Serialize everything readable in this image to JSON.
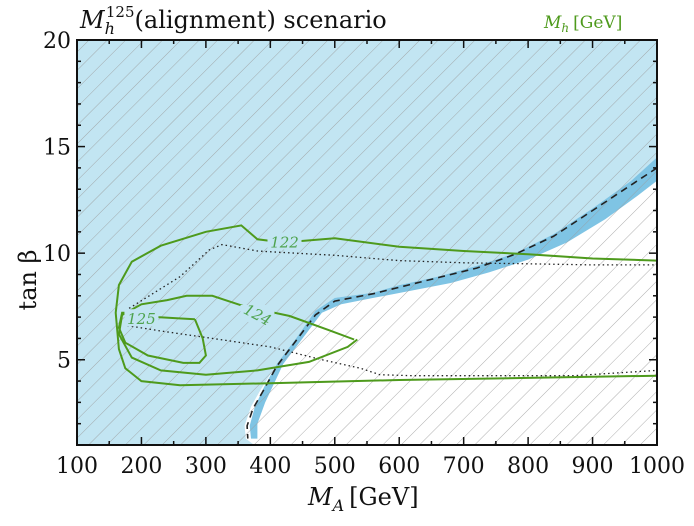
{
  "colors": {
    "excluded_fill": "#c2e5f2",
    "excluded_band": "#7fc4e4",
    "contour": "#4e9a1c",
    "contour_label": "#4fa34f",
    "hatch": "#9a9a9a",
    "axis": "#111111"
  },
  "chart_data": {
    "type": "contour",
    "title_main": "M",
    "title_sub": "h",
    "title_sup": "125",
    "title_rest": "(alignment) scenario",
    "xlabel_main": "M",
    "xlabel_sub": "A",
    "xlabel_unit": "[GeV]",
    "ylabel": "tan β",
    "legend_main": "M",
    "legend_sub": "h",
    "legend_unit": "[GeV]",
    "legend_position": "top-right",
    "xlim": [
      100,
      1000
    ],
    "ylim": [
      1,
      20
    ],
    "xticks": [
      100,
      200,
      300,
      400,
      500,
      600,
      700,
      800,
      900,
      1000
    ],
    "yticks": [
      5,
      10,
      15,
      20
    ],
    "excluded_region": [
      [
        100,
        1
      ],
      [
        100,
        20
      ],
      [
        1000,
        20
      ],
      [
        1000,
        14.5
      ],
      [
        960,
        13.4
      ],
      [
        900,
        12.1
      ],
      [
        840,
        10.9
      ],
      [
        780,
        10.0
      ],
      [
        720,
        9.4
      ],
      [
        660,
        8.9
      ],
      [
        600,
        8.5
      ],
      [
        560,
        8.15
      ],
      [
        500,
        7.9
      ],
      [
        470,
        7.3
      ],
      [
        440,
        6.0
      ],
      [
        410,
        4.8
      ],
      [
        385,
        3.6
      ],
      [
        370,
        2.8
      ],
      [
        360,
        1.9
      ],
      [
        362,
        1.3
      ],
      [
        375,
        1
      ],
      [
        100,
        1
      ]
    ],
    "exclusion_band": [
      [
        1000,
        14.5
      ],
      [
        960,
        13.4
      ],
      [
        900,
        12.1
      ],
      [
        840,
        10.9
      ],
      [
        780,
        10.0
      ],
      [
        720,
        9.4
      ],
      [
        660,
        8.9
      ],
      [
        600,
        8.5
      ],
      [
        560,
        8.15
      ],
      [
        500,
        7.9
      ],
      [
        470,
        7.3
      ],
      [
        440,
        6.0
      ],
      [
        410,
        4.8
      ],
      [
        390,
        3.7
      ],
      [
        376,
        2.8
      ],
      [
        368,
        1.9
      ],
      [
        370,
        1.3
      ],
      [
        380,
        1.3
      ],
      [
        380,
        2.0
      ],
      [
        392,
        3.0
      ],
      [
        420,
        4.8
      ],
      [
        450,
        6.0
      ],
      [
        480,
        7.2
      ],
      [
        510,
        7.6
      ],
      [
        560,
        7.9
      ],
      [
        620,
        8.25
      ],
      [
        680,
        8.6
      ],
      [
        740,
        9.1
      ],
      [
        800,
        9.7
      ],
      [
        860,
        10.5
      ],
      [
        920,
        11.6
      ],
      [
        970,
        12.7
      ],
      [
        1000,
        13.4
      ]
    ],
    "expected_boundary": [
      [
        1000,
        14.0
      ],
      [
        960,
        13.2
      ],
      [
        900,
        12.0
      ],
      [
        840,
        10.8
      ],
      [
        780,
        9.95
      ],
      [
        720,
        9.3
      ],
      [
        660,
        8.85
      ],
      [
        600,
        8.4
      ],
      [
        560,
        8.1
      ],
      [
        500,
        7.75
      ],
      [
        470,
        7.1
      ],
      [
        440,
        5.9
      ],
      [
        410,
        4.7
      ],
      [
        390,
        3.6
      ],
      [
        373,
        2.7
      ],
      [
        364,
        1.9
      ],
      [
        365,
        1.3
      ]
    ],
    "dotted_boundaries": [
      [
        [
          175,
          7.3
        ],
        [
          260,
          8.9
        ],
        [
          305,
          10.15
        ],
        [
          325,
          10.4
        ],
        [
          380,
          10.1
        ],
        [
          440,
          10.0
        ],
        [
          500,
          9.9
        ],
        [
          560,
          9.75
        ],
        [
          600,
          9.65
        ],
        [
          700,
          9.55
        ],
        [
          800,
          9.5
        ],
        [
          900,
          9.45
        ],
        [
          1000,
          9.45
        ]
      ],
      [
        [
          178,
          6.6
        ],
        [
          230,
          6.35
        ],
        [
          310,
          6.0
        ],
        [
          400,
          5.6
        ],
        [
          480,
          5.0
        ],
        [
          540,
          4.6
        ],
        [
          570,
          4.3
        ],
        [
          620,
          4.25
        ],
        [
          700,
          4.25
        ],
        [
          800,
          4.25
        ],
        [
          870,
          4.25
        ],
        [
          1000,
          4.5
        ]
      ]
    ],
    "contours": [
      {
        "label": "122",
        "label_x": 422,
        "label_y": 10.5,
        "points": [
          [
            1000,
            9.65
          ],
          [
            900,
            9.75
          ],
          [
            800,
            9.95
          ],
          [
            700,
            10.1
          ],
          [
            600,
            10.3
          ],
          [
            500,
            10.7
          ],
          [
            420,
            10.5
          ],
          [
            380,
            10.65
          ],
          [
            355,
            11.3
          ],
          [
            300,
            11.0
          ],
          [
            230,
            10.35
          ],
          [
            185,
            9.6
          ],
          [
            165,
            8.5
          ],
          [
            160,
            7.2
          ],
          [
            165,
            5.5
          ],
          [
            175,
            4.6
          ],
          [
            200,
            4.0
          ],
          [
            260,
            3.8
          ],
          [
            400,
            3.9
          ],
          [
            600,
            4.05
          ],
          [
            800,
            4.15
          ],
          [
            1000,
            4.25
          ]
        ]
      },
      {
        "label": "124",
        "label_x": 380,
        "label_y": 7.1,
        "points": [
          [
            530,
            5.95
          ],
          [
            490,
            6.4
          ],
          [
            430,
            7.05
          ],
          [
            360,
            7.5
          ],
          [
            330,
            7.8
          ],
          [
            310,
            8.0
          ],
          [
            270,
            8.0
          ],
          [
            240,
            7.8
          ],
          [
            200,
            7.6
          ],
          [
            170,
            7.1
          ],
          [
            165,
            6.2
          ],
          [
            185,
            5.1
          ],
          [
            230,
            4.5
          ],
          [
            300,
            4.3
          ],
          [
            380,
            4.5
          ],
          [
            460,
            4.9
          ],
          [
            520,
            5.6
          ],
          [
            535,
            5.95
          ]
        ]
      },
      {
        "label": "125",
        "label_x": 200,
        "label_y": 6.9,
        "points": [
          [
            283,
            6.9
          ],
          [
            255,
            6.95
          ],
          [
            225,
            7.0
          ],
          [
            195,
            7.2
          ],
          [
            170,
            7.2
          ],
          [
            165,
            6.5
          ],
          [
            175,
            5.8
          ],
          [
            210,
            5.2
          ],
          [
            265,
            4.85
          ],
          [
            290,
            4.85
          ],
          [
            300,
            5.2
          ],
          [
            295,
            6.0
          ],
          [
            283,
            6.9
          ]
        ]
      }
    ]
  }
}
